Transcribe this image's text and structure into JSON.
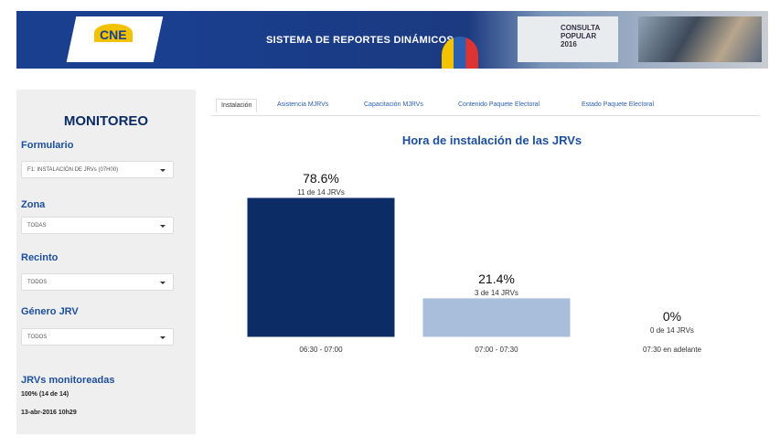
{
  "header": {
    "logo": "CNE",
    "title": "SISTEMA DE REPORTES DINÁMICOS",
    "badge": [
      "CONSULTA",
      "POPULAR",
      "2016"
    ]
  },
  "sidebar": {
    "title": "MONITOREO",
    "filters": [
      {
        "label": "Formulario",
        "value": "F1: INSTALACIÓN DE JRVs (07H00)"
      },
      {
        "label": "Zona",
        "value": "TODAS"
      },
      {
        "label": "Recinto",
        "value": "TODOS"
      },
      {
        "label": "Género JRV",
        "value": "TODOS"
      }
    ],
    "summary": {
      "label": "JRVs monitoreadas",
      "value": "100% (14 de 14)",
      "date": "13-abr-2016 10h29"
    }
  },
  "tabs": [
    "Instalación",
    "Asistencia MJRVs",
    "Capacitación MJRVs",
    "Contenido Paquete Electoral",
    "Estado Paquete Electoral"
  ],
  "chart_data": {
    "type": "bar",
    "title": "Hora de instalación de las JRVs",
    "categories": [
      "06:30 - 07:00",
      "07:00 - 07:30",
      "07:30 en adelante"
    ],
    "values": [
      78.6,
      21.4,
      0
    ],
    "value_labels": [
      "78.6%",
      "21.4%",
      "0%"
    ],
    "annotations": [
      "11 de 14 JRVs",
      "3 de 14 JRVs",
      "0 de 14 JRVs"
    ],
    "colors": [
      "#0c2c66",
      "#a9bedb",
      "#ffffff"
    ]
  }
}
